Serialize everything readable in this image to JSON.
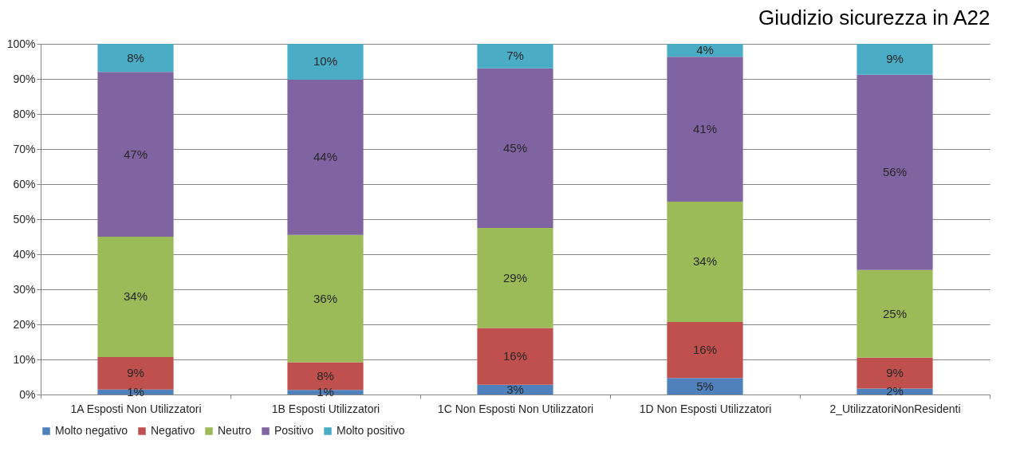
{
  "chart_data": {
    "type": "bar",
    "title": "Giudizio sicurezza in A22",
    "stacked": true,
    "categories": [
      "1A Esposti Non Utilizzatori",
      "1B Esposti Utilizzatori",
      "1C Non Esposti Non Utilizzatori",
      "1D Non Esposti Utilizzatori",
      "2_UtilizzatoriNonResidenti"
    ],
    "series": [
      {
        "name": "Molto negativo",
        "color": "#4f81bd",
        "values": [
          1.4,
          1.3,
          2.8,
          4.7,
          1.7
        ],
        "value_labels": [
          "1%",
          "1%",
          "3%",
          "5%",
          "2%"
        ]
      },
      {
        "name": "Negativo",
        "color": "#c0504d",
        "values": [
          9.3,
          7.9,
          16.2,
          16,
          8.8
        ],
        "value_labels": [
          "9%",
          "8%",
          "16%",
          "16%",
          "9%"
        ]
      },
      {
        "name": "Neutro",
        "color": "#9bbb59",
        "values": [
          34.3,
          36.3,
          28.5,
          34.3,
          25
        ],
        "value_labels": [
          "34%",
          "36%",
          "29%",
          "34%",
          "25%"
        ]
      },
      {
        "name": "Positivo",
        "color": "#8064a2",
        "values": [
          47,
          44.3,
          45.5,
          41.3,
          55.7
        ],
        "value_labels": [
          "47%",
          "44%",
          "45%",
          "41%",
          "56%"
        ]
      },
      {
        "name": "Molto positivo",
        "color": "#4bacc6",
        "values": [
          8,
          10.2,
          7,
          3.7,
          8.8
        ],
        "value_labels": [
          "8%",
          "10%",
          "7%",
          "4%",
          "9%"
        ]
      }
    ],
    "ylim": [
      0,
      100
    ],
    "yticks": [
      {
        "value": 0,
        "label": "0%"
      },
      {
        "value": 10,
        "label": "10%"
      },
      {
        "value": 20,
        "label": "20%"
      },
      {
        "value": 30,
        "label": "30%"
      },
      {
        "value": 40,
        "label": "40%"
      },
      {
        "value": 50,
        "label": "50%"
      },
      {
        "value": 60,
        "label": "60%"
      },
      {
        "value": 70,
        "label": "70%"
      },
      {
        "value": 80,
        "label": "80%"
      },
      {
        "value": 90,
        "label": "90%"
      },
      {
        "value": 100,
        "label": "100%"
      }
    ],
    "grid": "y",
    "legend": "bottom"
  }
}
